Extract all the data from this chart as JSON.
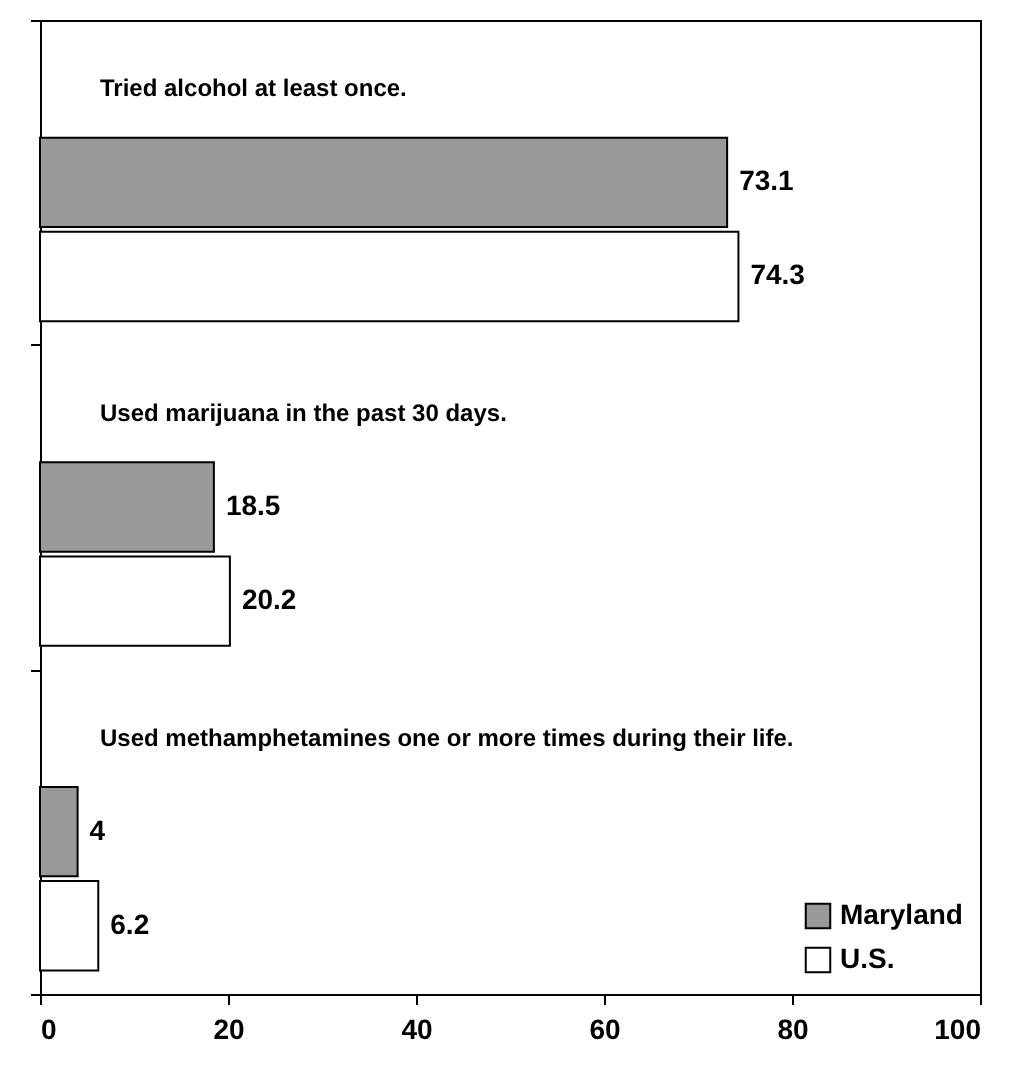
{
  "chart_data": {
    "type": "bar",
    "orientation": "horizontal",
    "categories": [
      "Tried alcohol at least once.",
      "Used marijuana in the past 30 days.",
      "Used methamphetamines one or more times during their life."
    ],
    "series": [
      {
        "name": "Maryland",
        "color": "#999999",
        "values": [
          73.1,
          18.5,
          4
        ]
      },
      {
        "name": "U.S.",
        "color": "#ffffff",
        "values": [
          74.3,
          20.2,
          6.2
        ]
      }
    ],
    "xlim": [
      0,
      100
    ],
    "xticks": [
      0,
      20,
      40,
      60,
      80,
      100
    ],
    "data_labels": true,
    "legend": "bottom right",
    "grid": false
  }
}
